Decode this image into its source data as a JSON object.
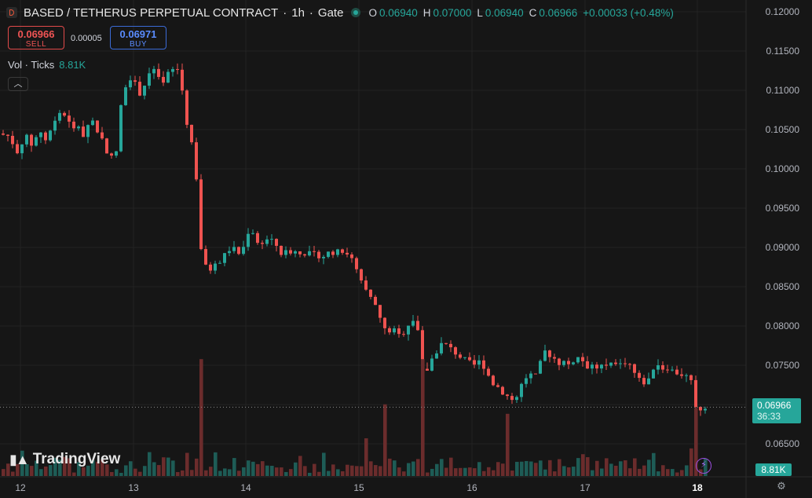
{
  "header": {
    "title": "BASED / TETHERUS PERPETUAL CONTRACT",
    "interval": "1h",
    "exchange": "Gate",
    "ohlc": {
      "o_label": "O",
      "o": "0.06940",
      "h_label": "H",
      "h": "0.07000",
      "l_label": "L",
      "l": "0.06940",
      "c_label": "C",
      "c": "0.06966",
      "change": "+0.00033 (+0.48%)"
    }
  },
  "trade": {
    "sell_price": "0.06966",
    "sell_label": "SELL",
    "spread": "0.00005",
    "buy_price": "0.06971",
    "buy_label": "BUY"
  },
  "volume_legend": {
    "label": "Vol · Ticks",
    "value": "8.81K"
  },
  "branding": {
    "logo_text": "TradingView"
  },
  "last_price": {
    "price": "0.06966",
    "countdown": "36:33"
  },
  "last_volume": "8.81K",
  "colors": {
    "up": "#26a69a",
    "down": "#ef5350",
    "vol_up": "#1e5c56",
    "vol_down": "#6b2c2c",
    "bg": "#161616"
  },
  "chart_data": {
    "type": "candlestick",
    "x_ticks": [
      "12",
      "13",
      "14",
      "15",
      "16",
      "17",
      "18"
    ],
    "y_ticks": [
      "0.12000",
      "0.11500",
      "0.11000",
      "0.10500",
      "0.10000",
      "0.09500",
      "0.09000",
      "0.08500",
      "0.08000",
      "0.07500",
      "0.07000",
      "0.06500"
    ],
    "ylim": [
      0.0625,
      0.1215
    ],
    "price_path": [
      [
        0,
        0.1045
      ],
      [
        4,
        0.1042
      ],
      [
        8,
        0.1048
      ],
      [
        12,
        0.104
      ],
      [
        16,
        0.1035
      ],
      [
        20,
        0.1028
      ],
      [
        24,
        0.102
      ],
      [
        28,
        0.103
      ],
      [
        32,
        0.1045
      ],
      [
        36,
        0.1038
      ],
      [
        40,
        0.103
      ],
      [
        46,
        0.1038
      ],
      [
        52,
        0.105
      ],
      [
        58,
        0.1035
      ],
      [
        64,
        0.1045
      ],
      [
        70,
        0.106
      ],
      [
        76,
        0.1072
      ],
      [
        82,
        0.107
      ],
      [
        88,
        0.106
      ],
      [
        94,
        0.1048
      ],
      [
        100,
        0.1058
      ],
      [
        106,
        0.104
      ],
      [
        112,
        0.1055
      ],
      [
        118,
        0.1063
      ],
      [
        124,
        0.105
      ],
      [
        130,
        0.104
      ],
      [
        136,
        0.1025
      ],
      [
        142,
        0.1015
      ],
      [
        148,
        0.101
      ],
      [
        152,
        0.106
      ],
      [
        156,
        0.1085
      ],
      [
        160,
        0.1105
      ],
      [
        166,
        0.1118
      ],
      [
        172,
        0.111
      ],
      [
        178,
        0.1095
      ],
      [
        184,
        0.1105
      ],
      [
        190,
        0.112
      ],
      [
        196,
        0.1128
      ],
      [
        202,
        0.1115
      ],
      [
        208,
        0.1105
      ],
      [
        214,
        0.112
      ],
      [
        220,
        0.1125
      ],
      [
        226,
        0.113
      ],
      [
        232,
        0.111
      ],
      [
        236,
        0.107
      ],
      [
        240,
        0.1055
      ],
      [
        244,
        0.104
      ],
      [
        248,
        0.1015
      ],
      [
        252,
        0.098
      ],
      [
        256,
        0.0905
      ],
      [
        260,
        0.088
      ],
      [
        266,
        0.087
      ],
      [
        272,
        0.0875
      ],
      [
        278,
        0.088
      ],
      [
        284,
        0.0885
      ],
      [
        290,
        0.0895
      ],
      [
        296,
        0.09
      ],
      [
        302,
        0.0895
      ],
      [
        308,
        0.089
      ],
      [
        314,
        0.091
      ],
      [
        320,
        0.093
      ],
      [
        326,
        0.091
      ],
      [
        332,
        0.09
      ],
      [
        338,
        0.0915
      ],
      [
        344,
        0.0905
      ],
      [
        350,
        0.091
      ],
      [
        356,
        0.0895
      ],
      [
        362,
        0.089
      ],
      [
        368,
        0.0898
      ],
      [
        374,
        0.0892
      ],
      [
        380,
        0.0897
      ],
      [
        386,
        0.0892
      ],
      [
        392,
        0.0894
      ],
      [
        398,
        0.0889
      ],
      [
        404,
        0.0892
      ],
      [
        410,
        0.0888
      ],
      [
        416,
        0.089
      ],
      [
        422,
        0.0896
      ],
      [
        428,
        0.0892
      ],
      [
        434,
        0.0896
      ],
      [
        440,
        0.0893
      ],
      [
        446,
        0.0892
      ],
      [
        452,
        0.0878
      ],
      [
        458,
        0.0862
      ],
      [
        464,
        0.0848
      ],
      [
        470,
        0.084
      ],
      [
        476,
        0.083
      ],
      [
        482,
        0.082
      ],
      [
        488,
        0.08
      ],
      [
        494,
        0.079
      ],
      [
        500,
        0.0798
      ],
      [
        506,
        0.079
      ],
      [
        512,
        0.0785
      ],
      [
        518,
        0.08
      ],
      [
        524,
        0.0805
      ],
      [
        530,
        0.0812
      ],
      [
        534,
        0.079
      ],
      [
        538,
        0.0745
      ],
      [
        542,
        0.0735
      ],
      [
        546,
        0.0748
      ],
      [
        552,
        0.076
      ],
      [
        558,
        0.077
      ],
      [
        564,
        0.0778
      ],
      [
        570,
        0.0775
      ],
      [
        576,
        0.077
      ],
      [
        582,
        0.0765
      ],
      [
        588,
        0.076
      ],
      [
        594,
        0.0756
      ],
      [
        600,
        0.0752
      ],
      [
        606,
        0.075
      ],
      [
        612,
        0.0755
      ],
      [
        618,
        0.0748
      ],
      [
        624,
        0.0735
      ],
      [
        630,
        0.0725
      ],
      [
        636,
        0.0722
      ],
      [
        642,
        0.0715
      ],
      [
        648,
        0.071
      ],
      [
        654,
        0.0706
      ],
      [
        660,
        0.071
      ],
      [
        666,
        0.0728
      ],
      [
        672,
        0.0736
      ],
      [
        678,
        0.0738
      ],
      [
        684,
        0.0735
      ],
      [
        690,
        0.0755
      ],
      [
        696,
        0.077
      ],
      [
        702,
        0.0762
      ],
      [
        708,
        0.0758
      ],
      [
        714,
        0.0752
      ],
      [
        720,
        0.0755
      ],
      [
        726,
        0.075
      ],
      [
        732,
        0.0758
      ],
      [
        738,
        0.076
      ],
      [
        744,
        0.0755
      ],
      [
        750,
        0.0748
      ],
      [
        756,
        0.075
      ],
      [
        762,
        0.0745
      ],
      [
        768,
        0.075
      ],
      [
        774,
        0.0748
      ],
      [
        780,
        0.0752
      ],
      [
        786,
        0.0748
      ],
      [
        792,
        0.0752
      ],
      [
        798,
        0.0755
      ],
      [
        804,
        0.075
      ],
      [
        810,
        0.0738
      ],
      [
        816,
        0.073
      ],
      [
        822,
        0.0728
      ],
      [
        828,
        0.0732
      ],
      [
        834,
        0.075
      ],
      [
        840,
        0.0752
      ],
      [
        846,
        0.0745
      ],
      [
        852,
        0.0748
      ],
      [
        858,
        0.0742
      ],
      [
        864,
        0.074
      ],
      [
        870,
        0.0738
      ],
      [
        876,
        0.0735
      ],
      [
        880,
        0.0733
      ],
      [
        884,
        0.0712
      ],
      [
        888,
        0.069
      ],
      [
        892,
        0.0694
      ],
      [
        896,
        0.0697
      ]
    ],
    "volume_spikes": [
      [
        252,
        0.62
      ],
      [
        536,
        0.62
      ],
      [
        488,
        0.38
      ],
      [
        642,
        0.33
      ],
      [
        466,
        0.2
      ],
      [
        884,
        0.36
      ]
    ]
  }
}
